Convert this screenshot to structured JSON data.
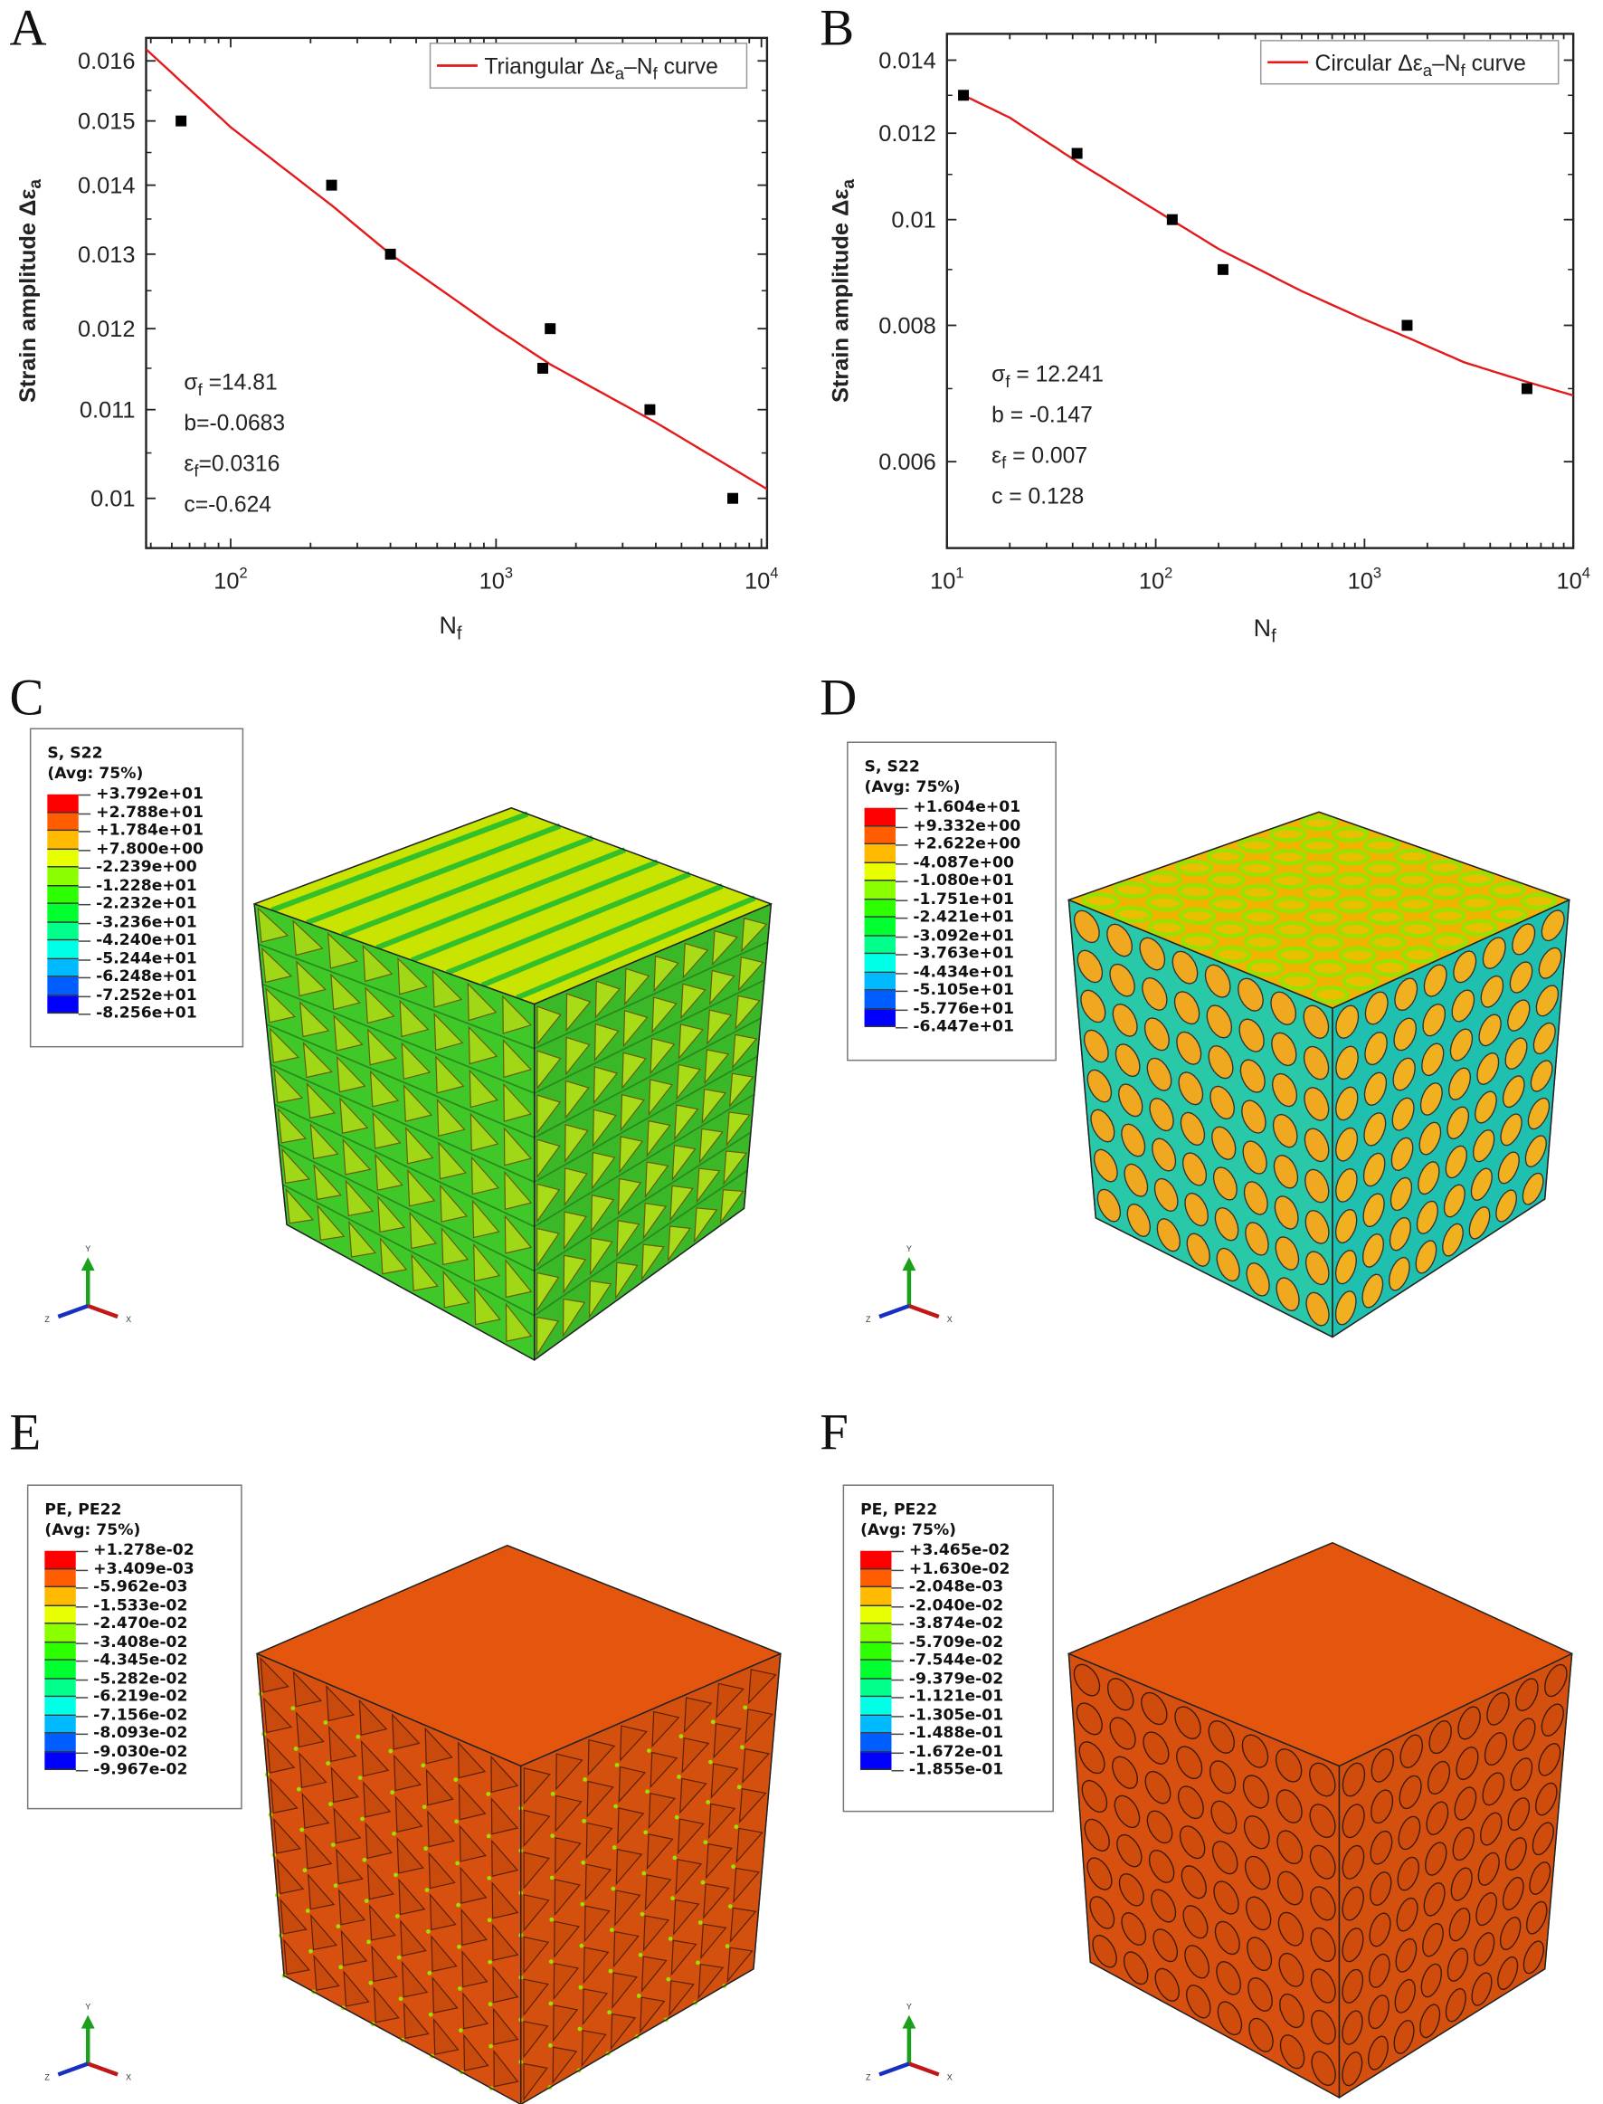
{
  "panels": {
    "a": "A",
    "b": "B",
    "c": "C",
    "d": "D",
    "e": "E",
    "f": "F"
  },
  "chart_data": [
    {
      "type": "scatter",
      "id": "A",
      "title": "",
      "xlabel": [
        {
          "t": "N"
        },
        {
          "t": "f",
          "sub": true
        }
      ],
      "ylabel": [
        {
          "t": "Strain amplitude Δε"
        },
        {
          "t": "a",
          "sub": true
        }
      ],
      "xscale": "log",
      "yscale": "log",
      "xlim": [
        48,
        10500
      ],
      "ylim": [
        0.00948,
        0.0164
      ],
      "xticks": [
        100,
        1000,
        10000
      ],
      "xtick_labels": [
        [
          "10",
          "2"
        ],
        [
          "10",
          "3"
        ],
        [
          "10",
          "4"
        ]
      ],
      "yticks": [
        0.016,
        0.015,
        0.014,
        0.013,
        0.012,
        0.011,
        0.01
      ],
      "ytick_labels": [
        "0.016",
        "0.015",
        "0.014",
        "0.013",
        "0.012",
        "0.011",
        "0.01"
      ],
      "points": {
        "x": [
          65,
          240,
          400,
          1500,
          1600,
          3800,
          7800
        ],
        "y": [
          0.015,
          0.014,
          0.013,
          0.0115,
          0.012,
          0.011,
          0.01
        ]
      },
      "fit_curve": {
        "x": [
          48,
          100,
          240,
          400,
          1000,
          1600,
          4000,
          10500
        ],
        "y": [
          0.0162,
          0.0149,
          0.0137,
          0.013,
          0.012,
          0.01155,
          0.01085,
          0.0101
        ]
      },
      "legend": {
        "position": "top-right",
        "label": [
          {
            "t": "Triangular Δε"
          },
          {
            "t": "a",
            "sub": true
          },
          {
            "t": "–N"
          },
          {
            "t": "f",
            "sub": true
          },
          {
            "t": " curve"
          }
        ]
      },
      "annotations": [
        [
          {
            "t": "σ"
          },
          {
            "t": "f",
            "sub": true
          },
          {
            "t": " =14.81"
          }
        ],
        [
          {
            "t": "b=-0.0683"
          }
        ],
        [
          {
            "t": "ε"
          },
          {
            "t": "f",
            "sub": true
          },
          {
            "t": "=0.0316"
          }
        ],
        [
          {
            "t": "c=-0.624"
          }
        ]
      ],
      "colors": {
        "curve": "#e31a1c",
        "points": "#000000"
      }
    },
    {
      "type": "scatter",
      "id": "B",
      "title": "",
      "xlabel": [
        {
          "t": "N"
        },
        {
          "t": "f",
          "sub": true
        }
      ],
      "ylabel": [
        {
          "t": "Strain amplitude Δε"
        },
        {
          "t": "a",
          "sub": true
        }
      ],
      "xscale": "log",
      "yscale": "log",
      "xlim": [
        10,
        10000
      ],
      "ylim": [
        0.005,
        0.0148
      ],
      "xticks": [
        10,
        100,
        1000,
        10000
      ],
      "xtick_labels": [
        [
          "10",
          "1"
        ],
        [
          "10",
          "2"
        ],
        [
          "10",
          "3"
        ],
        [
          "10",
          "4"
        ]
      ],
      "yticks": [
        0.014,
        0.012,
        0.01,
        0.008,
        0.006
      ],
      "ytick_labels": [
        "0.014",
        "0.012",
        "0.01",
        "0.008",
        "0.006"
      ],
      "points": {
        "x": [
          12,
          42,
          120,
          210,
          1600,
          6000
        ],
        "y": [
          0.013,
          0.0115,
          0.01,
          0.009,
          0.008,
          0.007
        ]
      },
      "fit_curve": {
        "x": [
          12,
          20,
          42,
          100,
          200,
          500,
          1000,
          1600,
          3000,
          6000,
          10000
        ],
        "y": [
          0.013,
          0.0124,
          0.0113,
          0.0102,
          0.0094,
          0.0086,
          0.0081,
          0.0078,
          0.0074,
          0.0071,
          0.0069
        ]
      },
      "legend": {
        "position": "top-right",
        "label": [
          {
            "t": "Circular Δε"
          },
          {
            "t": "a",
            "sub": true
          },
          {
            "t": "–N"
          },
          {
            "t": "f",
            "sub": true
          },
          {
            "t": " curve"
          }
        ]
      },
      "annotations": [
        [
          {
            "t": "σ"
          },
          {
            "t": "f",
            "sub": true
          },
          {
            "t": " = 12.241"
          }
        ],
        [
          {
            "t": "b = -0.147"
          }
        ],
        [
          {
            "t": "ε"
          },
          {
            "t": "f",
            "sub": true
          },
          {
            "t": " = 0.007"
          }
        ],
        [
          {
            "t": "c = 0.128"
          }
        ]
      ],
      "colors": {
        "curve": "#e31a1c",
        "points": "#000000"
      }
    }
  ],
  "contour_legends": {
    "c": {
      "title": "S, S22",
      "subtitle": "(Avg: 75%)",
      "values": [
        "+3.792e+01",
        "+2.788e+01",
        "+1.784e+01",
        "+7.800e+00",
        "-2.239e+00",
        "-1.228e+01",
        "-2.232e+01",
        "-3.236e+01",
        "-4.240e+01",
        "-5.244e+01",
        "-6.248e+01",
        "-7.252e+01",
        "-8.256e+01"
      ]
    },
    "d": {
      "title": "S, S22",
      "subtitle": "(Avg: 75%)",
      "values": [
        "+1.604e+01",
        "+9.332e+00",
        "+2.622e+00",
        "-4.087e+00",
        "-1.080e+01",
        "-1.751e+01",
        "-2.421e+01",
        "-3.092e+01",
        "-3.763e+01",
        "-4.434e+01",
        "-5.105e+01",
        "-5.776e+01",
        "-6.447e+01"
      ]
    },
    "e": {
      "title": "PE, PE22",
      "subtitle": "(Avg: 75%)",
      "values": [
        "+1.278e-02",
        "+3.409e-03",
        "-5.962e-03",
        "-1.533e-02",
        "-2.470e-02",
        "-3.408e-02",
        "-4.345e-02",
        "-5.282e-02",
        "-6.219e-02",
        "-7.156e-02",
        "-8.093e-02",
        "-9.030e-02",
        "-9.967e-02"
      ]
    },
    "f": {
      "title": "PE, PE22",
      "subtitle": "(Avg: 75%)",
      "values": [
        "+3.465e-02",
        "+1.630e-02",
        "-2.048e-03",
        "-2.040e-02",
        "-3.874e-02",
        "-5.709e-02",
        "-7.544e-02",
        "-9.379e-02",
        "-1.121e-01",
        "-1.305e-01",
        "-1.488e-01",
        "-1.672e-01",
        "-1.855e-01"
      ]
    }
  },
  "band_colors": [
    "#ff0000",
    "#ff5d00",
    "#ffb900",
    "#e7ff00",
    "#8bff00",
    "#2eff00",
    "#00ff2e",
    "#00ff8b",
    "#00ffe7",
    "#00b9ff",
    "#005dff",
    "#0000ff"
  ],
  "triad": {
    "x": "X",
    "y": "Y",
    "z": "Z"
  }
}
